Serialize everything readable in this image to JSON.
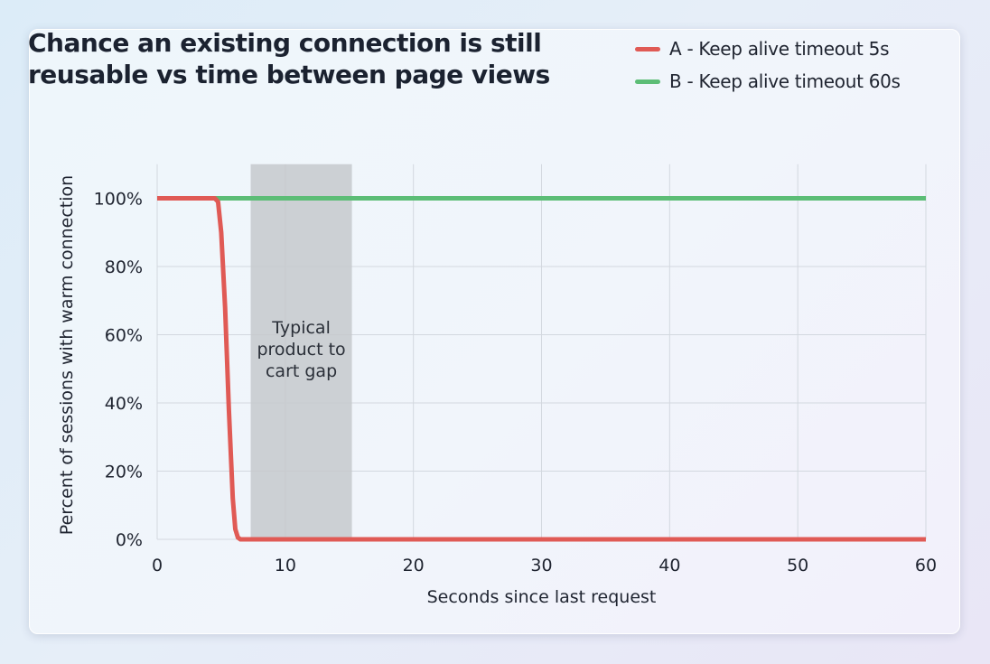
{
  "chart_data": {
    "type": "line",
    "title": "Chance an existing connection is still reusable vs time between page views",
    "xlabel": "Seconds since last request",
    "ylabel": "Percent of sessions with warm connection",
    "xlim": [
      0,
      60
    ],
    "ylim": [
      0,
      110
    ],
    "x_ticks": [
      0,
      10,
      20,
      30,
      40,
      50,
      60
    ],
    "y_ticks": [
      0,
      20,
      40,
      60,
      80,
      100
    ],
    "y_tick_labels": [
      "0%",
      "20%",
      "40%",
      "60%",
      "80%",
      "100%"
    ],
    "grid": true,
    "legend_position": "top-right",
    "series": [
      {
        "name": "A - Keep alive timeout 5s",
        "color": "#e05a55",
        "x": [
          0,
          4.5,
          4.75,
          5,
          5.3,
          5.6,
          5.9,
          6.1,
          6.3,
          6.5,
          60
        ],
        "y": [
          100,
          100,
          99,
          90,
          68,
          38,
          12,
          3,
          0.5,
          0,
          0
        ]
      },
      {
        "name": "B - Keep alive timeout 60s",
        "color": "#5cbd76",
        "x": [
          0,
          60
        ],
        "y": [
          100,
          100
        ]
      }
    ],
    "annotations": [
      {
        "type": "shaded_region",
        "x_start": 7.3,
        "x_end": 15.2,
        "lines": [
          "Typical",
          "product to",
          "cart gap"
        ],
        "color": "#c5c9cd"
      }
    ]
  }
}
